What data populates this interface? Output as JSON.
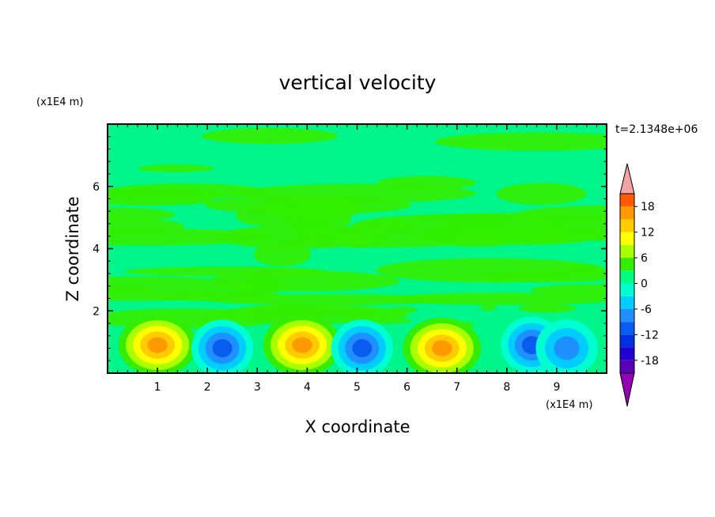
{
  "chart_data": {
    "type": "heatmap",
    "title": "vertical velocity",
    "xlabel": "X coordinate",
    "ylabel": "Z coordinate",
    "x_unit": "(x1E4 m)",
    "y_unit": "(x1E4 m)",
    "time_label": "t=2.1348e+06",
    "xlim": [
      0,
      10
    ],
    "ylim": [
      0,
      8
    ],
    "x_ticks": [
      "1",
      "2",
      "3",
      "4",
      "5",
      "6",
      "7",
      "8",
      "9"
    ],
    "y_ticks": [
      "2",
      "4",
      "6"
    ],
    "colorbar": {
      "tick_labels": [
        "18",
        "12",
        "6",
        "0",
        "-6",
        "-12",
        "-18"
      ],
      "levels": [
        -21,
        -18,
        -15,
        -12,
        -9,
        -6,
        -3,
        0,
        3,
        6,
        9,
        12,
        15,
        18,
        21
      ],
      "colors": [
        "#9400b4",
        "#5a00b4",
        "#2200d4",
        "#0030e0",
        "#0a5cf0",
        "#1e90ff",
        "#00cdff",
        "#00ffd0",
        "#00ff80",
        "#33ee00",
        "#aaff00",
        "#ffff00",
        "#ffcc00",
        "#ff9900",
        "#ff5a00",
        "#ff2020",
        "#f3a3a3"
      ]
    },
    "features": [
      {
        "kind": "updraft",
        "x": 1.0,
        "z": 0.9,
        "peak": 14
      },
      {
        "kind": "downdraft",
        "x": 2.3,
        "z": 0.8,
        "peak": -12
      },
      {
        "kind": "updraft",
        "x": 3.9,
        "z": 0.9,
        "peak": 16
      },
      {
        "kind": "downdraft",
        "x": 5.1,
        "z": 0.8,
        "peak": -12
      },
      {
        "kind": "updraft",
        "x": 6.7,
        "z": 0.8,
        "peak": 16
      },
      {
        "kind": "downdraft",
        "x": 8.5,
        "z": 0.9,
        "peak": -13
      },
      {
        "kind": "downdraft",
        "x": 9.2,
        "z": 0.8,
        "peak": -10
      }
    ]
  }
}
